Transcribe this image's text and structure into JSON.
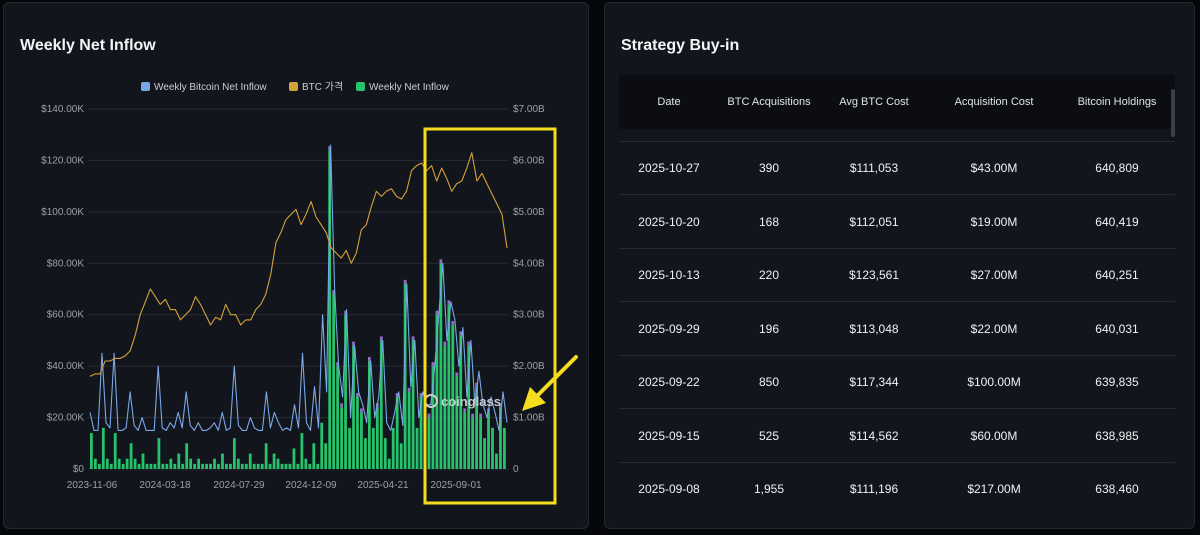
{
  "left_panel": {
    "title": "Weekly Net Inflow",
    "watermark": "coinglass"
  },
  "right_panel": {
    "title": "Strategy Buy-in",
    "table": {
      "columns": [
        "Date",
        "BTC Acquisitions",
        "Avg BTC Cost",
        "Acquisition Cost",
        "Bitcoin Holdings"
      ],
      "rows": [
        [
          "2025-10-27",
          "390",
          "$111,053",
          "$43.00M",
          "640,809"
        ],
        [
          "2025-10-20",
          "168",
          "$112,051",
          "$19.00M",
          "640,419"
        ],
        [
          "2025-10-13",
          "220",
          "$123,561",
          "$27.00M",
          "640,251"
        ],
        [
          "2025-09-29",
          "196",
          "$113,048",
          "$22.00M",
          "640,031"
        ],
        [
          "2025-09-22",
          "850",
          "$117,344",
          "$100.00M",
          "639,835"
        ],
        [
          "2025-09-15",
          "525",
          "$114,562",
          "$60.00M",
          "638,985"
        ],
        [
          "2025-09-08",
          "1,955",
          "$111,196",
          "$217.00M",
          "638,460"
        ]
      ]
    }
  },
  "colors": {
    "inflow_line": "#7aa7e6",
    "btc_price": "#d4a13a",
    "net_bar": "#27c26c",
    "bar_cap": "#a77be0",
    "highlight": "#f5dc1c"
  },
  "chart_data": {
    "type": "bar",
    "legend": [
      "Weekly Bitcoin Net Inflow",
      "BTC 가격",
      "Weekly Net Inflow"
    ],
    "legend_position": "top-center",
    "x_tick_labels": [
      "2023-11-06",
      "2024-03-18",
      "2024-07-29",
      "2024-12-09",
      "2025-04-21",
      "2025-09-01"
    ],
    "y_left_ticks": [
      "$0",
      "$20.00K",
      "$40.00K",
      "$60.00K",
      "$80.00K",
      "$100.00K",
      "$120.00K",
      "$140.00K"
    ],
    "y_right_ticks": [
      "0",
      "$1.00B",
      "$2.00B",
      "$3.00B",
      "$4.00B",
      "$5.00B",
      "$6.00B",
      "$7.00B"
    ],
    "y_left_range": [
      0,
      140000
    ],
    "y_right_range": [
      0,
      7000000000
    ],
    "grid": true,
    "series": [
      {
        "name": "Weekly Bitcoin Net Inflow",
        "type": "line",
        "axis": "left",
        "values": [
          22000,
          15000,
          15000,
          45000,
          18000,
          16000,
          45000,
          15000,
          15000,
          16000,
          30000,
          17000,
          15000,
          20000,
          15000,
          15000,
          15000,
          40000,
          16000,
          15000,
          18000,
          16000,
          22000,
          16000,
          30000,
          17000,
          15000,
          18000,
          15000,
          15000,
          16000,
          18000,
          15000,
          22000,
          15000,
          16000,
          40000,
          17000,
          15000,
          15000,
          20000,
          16000,
          15000,
          15000,
          30000,
          16000,
          22000,
          18000,
          15000,
          16000,
          15000,
          25000,
          16000,
          45000,
          18000,
          15000,
          32000,
          16000,
          60000,
          30000,
          126000,
          70000,
          40000,
          28000,
          62000,
          20000,
          48000,
          30000,
          25000,
          18000,
          42000,
          20000,
          28000,
          50000,
          18000,
          15000,
          22000,
          30000,
          17000,
          72000,
          32000,
          50000,
          20000,
          30000,
          25000,
          25000,
          40000,
          60000,
          80000,
          50000,
          65000,
          58000,
          40000,
          55000,
          28000,
          50000,
          25000,
          38000,
          25000,
          20000,
          28000,
          22000,
          15000,
          30000,
          18000
        ]
      },
      {
        "name": "BTC 가격",
        "type": "line",
        "axis": "left",
        "values": [
          36000,
          37000,
          37000,
          42000,
          42000,
          43000,
          43000,
          44000,
          46000,
          52000,
          60000,
          65000,
          70000,
          67000,
          64000,
          66000,
          62000,
          62000,
          58000,
          60000,
          62000,
          67000,
          64000,
          60000,
          56000,
          59000,
          58000,
          64000,
          60000,
          60000,
          56000,
          58000,
          58000,
          62000,
          64000,
          68000,
          76000,
          88000,
          92000,
          97000,
          99000,
          101000,
          95000,
          99000,
          104000,
          98000,
          95000,
          92000,
          86000,
          84000,
          82000,
          85000,
          80000,
          84000,
          93000,
          95000,
          102000,
          108000,
          106000,
          108000,
          109000,
          106000,
          105000,
          108000,
          116000,
          118000,
          119000,
          116000,
          118000,
          112000,
          117000,
          113000,
          108000,
          111000,
          112000,
          117000,
          123000,
          112000,
          115000,
          111000,
          107000,
          103000,
          99000,
          86000
        ]
      },
      {
        "name": "Weekly Net Inflow",
        "type": "bar",
        "axis": "right",
        "values": [
          0.7,
          0.2,
          0.1,
          0.8,
          0.2,
          0.1,
          0.7,
          0.2,
          0.1,
          0.2,
          0.5,
          0.2,
          0.1,
          0.3,
          0.1,
          0.1,
          0.1,
          0.6,
          0.1,
          0.1,
          0.2,
          0.1,
          0.3,
          0.1,
          0.5,
          0.2,
          0.1,
          0.2,
          0.1,
          0.1,
          0.1,
          0.2,
          0.1,
          0.3,
          0.1,
          0.1,
          0.6,
          0.2,
          0.1,
          0.1,
          0.3,
          0.1,
          0.1,
          0.1,
          0.5,
          0.1,
          0.3,
          0.2,
          0.1,
          0.1,
          0.1,
          0.4,
          0.1,
          0.7,
          0.2,
          0.1,
          0.5,
          0.1,
          0.9,
          0.5,
          6.2,
          3.4,
          2.0,
          1.2,
          3.0,
          0.8,
          2.4,
          1.4,
          1.1,
          0.6,
          2.1,
          0.8,
          1.2,
          2.5,
          0.6,
          0.2,
          0.8,
          1.4,
          0.5,
          3.6,
          1.5,
          2.5,
          0.8,
          1.4,
          1.1,
          1.0,
          2.0,
          3.0,
          4.0,
          2.4,
          3.2,
          2.8,
          1.8,
          2.6,
          1.1,
          2.4,
          1.0,
          1.6,
          1.0,
          0.6,
          1.1,
          0.8,
          0.3,
          1.2,
          0.8
        ]
      }
    ]
  }
}
